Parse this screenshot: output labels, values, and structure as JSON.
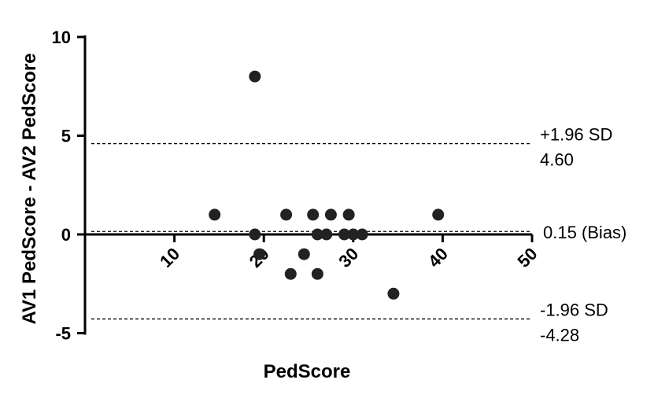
{
  "chart_data": {
    "type": "scatter",
    "xlabel": "PedScore",
    "ylabel": "AV1 PedScore - AV2 PedScore",
    "xlim": [
      0,
      50
    ],
    "ylim": [
      -5,
      10
    ],
    "x_ticks": [
      "10",
      "20",
      "30",
      "40",
      "50"
    ],
    "y_ticks": [
      "10",
      "5",
      "0",
      "-5"
    ],
    "points": [
      {
        "x": 19,
        "y": 8
      },
      {
        "x": 14.5,
        "y": 1
      },
      {
        "x": 22.5,
        "y": 1
      },
      {
        "x": 25.5,
        "y": 1
      },
      {
        "x": 27.5,
        "y": 1
      },
      {
        "x": 29.5,
        "y": 1
      },
      {
        "x": 39.5,
        "y": 1
      },
      {
        "x": 19,
        "y": 0
      },
      {
        "x": 26,
        "y": 0
      },
      {
        "x": 27,
        "y": 0
      },
      {
        "x": 29,
        "y": 0
      },
      {
        "x": 30,
        "y": 0
      },
      {
        "x": 31,
        "y": 0
      },
      {
        "x": 19.5,
        "y": -1
      },
      {
        "x": 24.5,
        "y": -1
      },
      {
        "x": 23,
        "y": -2
      },
      {
        "x": 26,
        "y": -2
      },
      {
        "x": 34.5,
        "y": -3
      }
    ],
    "reference_lines": [
      {
        "y": 4.6,
        "label1": "+1.96 SD",
        "label2": "4.60",
        "style": "dashed"
      },
      {
        "y": 0.15,
        "label1": "0.15 (Bias)",
        "label2": "",
        "style": "dashed"
      },
      {
        "y": -4.28,
        "label1": "-1.96 SD",
        "label2": "-4.28",
        "style": "dashed"
      }
    ],
    "marker_color": "#222222",
    "grid": false
  }
}
